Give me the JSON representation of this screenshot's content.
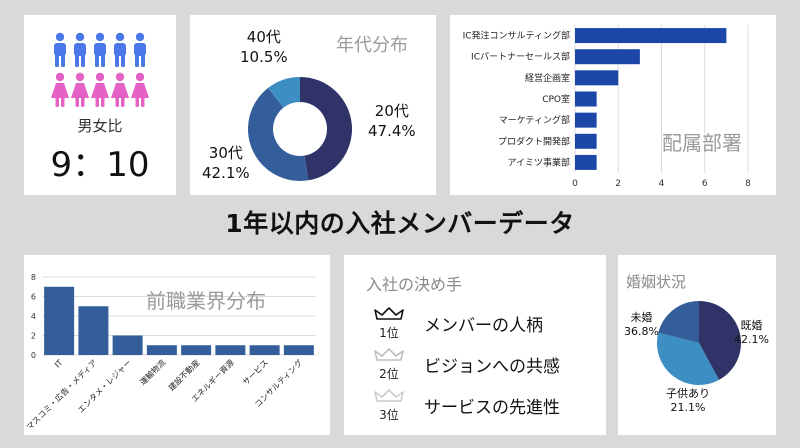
{
  "colors": {
    "navy": "#2f3368",
    "mid_blue": "#345e9a",
    "light_blue": "#3d8ec3",
    "bar_blue": "#1c47a8",
    "steel_blue": "#345e9a",
    "person_blue": "#4a78e8",
    "person_pink": "#e461c6",
    "title_gray": "#9b9b9b",
    "grid": "#dcdcdc"
  },
  "title": "1年以内の入社メンバーデータ",
  "gender_panel": {
    "icon_rows": [
      "male",
      "female"
    ],
    "icons_per_row": 5,
    "label": "男女比",
    "ratio_left": "9",
    "ratio_sep": "：",
    "ratio_right": "10"
  },
  "decision_panel": {
    "title": "入社の決め手",
    "ranks": [
      {
        "rank": "1位",
        "text": "メンバーの人柄",
        "icon": "crown-icon"
      },
      {
        "rank": "2位",
        "text": "ビジョンへの共感",
        "icon": "crown-icon"
      },
      {
        "rank": "3位",
        "text": "サービスの先進性",
        "icon": "crown-icon"
      }
    ]
  },
  "chart_data": [
    {
      "id": "age",
      "type": "pie",
      "title": "年代分布",
      "categories": [
        "20代",
        "30代",
        "40代"
      ],
      "values": [
        47.4,
        42.1,
        10.5
      ],
      "labels": [
        "47.4%",
        "42.1%",
        "10.5%"
      ],
      "colors": [
        "#2f3368",
        "#345e9a",
        "#3d8ec3"
      ],
      "donut": true
    },
    {
      "id": "dept",
      "type": "bar",
      "orientation": "horizontal",
      "title": "配属部署",
      "categories": [
        "IC発注コンサルティング部",
        "ICパートナーセールス部",
        "経営企画室",
        "CPO室",
        "マーケティング部",
        "プロダクト開発部",
        "アイミツ事業部"
      ],
      "values": [
        7,
        3,
        2,
        1,
        1,
        1,
        1
      ],
      "xlim": [
        0,
        8
      ],
      "xticks": [
        "0",
        "2",
        "4",
        "6",
        "8"
      ],
      "grid": true,
      "color": "#1c47a8"
    },
    {
      "id": "industry",
      "type": "bar",
      "title": "前職業界分布",
      "categories": [
        "IT",
        "マスコミ・広告・メディア",
        "エンタメ・レジャー",
        "運輸物流",
        "建設不動産",
        "エネルギー資源",
        "サービス",
        "コンサルティング"
      ],
      "values": [
        7,
        5,
        2,
        1,
        1,
        1,
        1,
        1
      ],
      "ylim": [
        0,
        8
      ],
      "yticks": [
        "0",
        "2",
        "4",
        "6",
        "8"
      ],
      "grid": true,
      "color": "#345e9a"
    },
    {
      "id": "marriage",
      "type": "pie",
      "title": "婚姻状況",
      "categories": [
        "既婚",
        "未婚",
        "子供あり"
      ],
      "values": [
        42.1,
        36.8,
        21.1
      ],
      "labels": [
        "42.1%",
        "36.8%",
        "21.1%"
      ],
      "colors": [
        "#2f3368",
        "#3d8ec3",
        "#345e9a"
      ],
      "donut": false
    }
  ]
}
